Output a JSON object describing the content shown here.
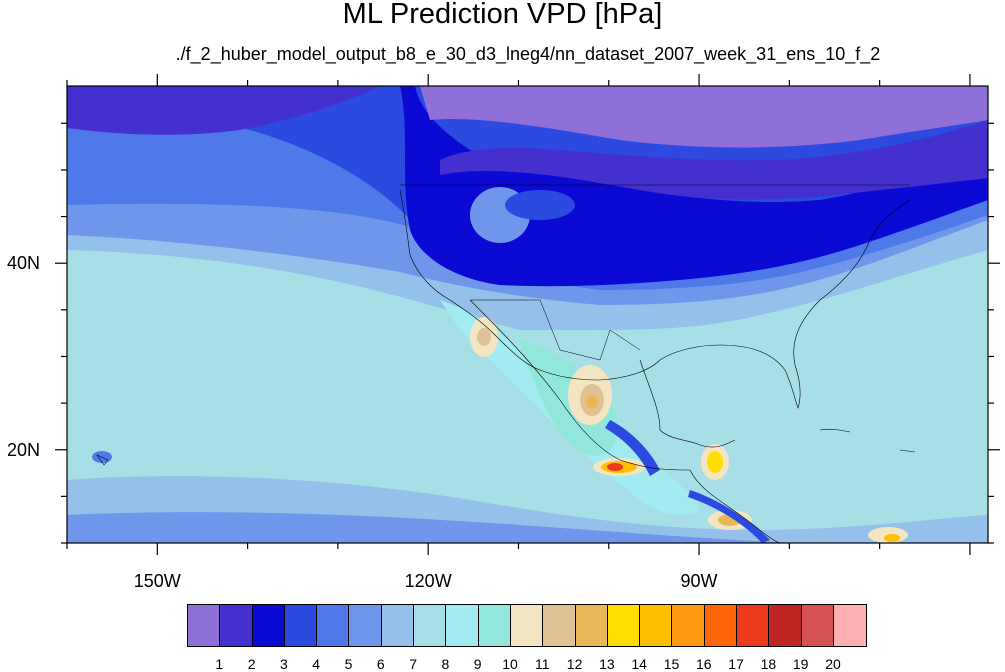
{
  "title": "ML Prediction VPD [hPa]",
  "subtitle": "./f_2_huber_model_output_b8_e_30_d3_lneg4/nn_dataset_2007_week_31_ens_10_f_2",
  "lat_labels": [
    {
      "text": "40N",
      "lat": 40
    },
    {
      "text": "20N",
      "lat": 20
    }
  ],
  "lon_labels": [
    {
      "text": "150W",
      "lon": -150
    },
    {
      "text": "120W",
      "lon": -120
    },
    {
      "text": "90W",
      "lon": -90
    }
  ],
  "map_extent": {
    "lon_min": -160,
    "lon_max": -58,
    "lat_min": 10,
    "lat_max": 59
  },
  "colorbar": {
    "colors": [
      "#8f6fd8",
      "#4330cf",
      "#0a0ad4",
      "#2c4ae0",
      "#4f79e8",
      "#6f96ea",
      "#95c0ea",
      "#a8dee6",
      "#a2ebf1",
      "#92e7dc",
      "#f3e5c2",
      "#e0c394",
      "#e8b757",
      "#ffdd00",
      "#ffbf00",
      "#ff9a12",
      "#ff6408",
      "#ec3a1a",
      "#be2626",
      "#d45252",
      "#ffb0b4"
    ],
    "labels": [
      "1",
      "2",
      "3",
      "4",
      "5",
      "6",
      "7",
      "8",
      "9",
      "10",
      "11",
      "12",
      "13",
      "14",
      "15",
      "16",
      "17",
      "18",
      "19",
      "20"
    ]
  }
}
